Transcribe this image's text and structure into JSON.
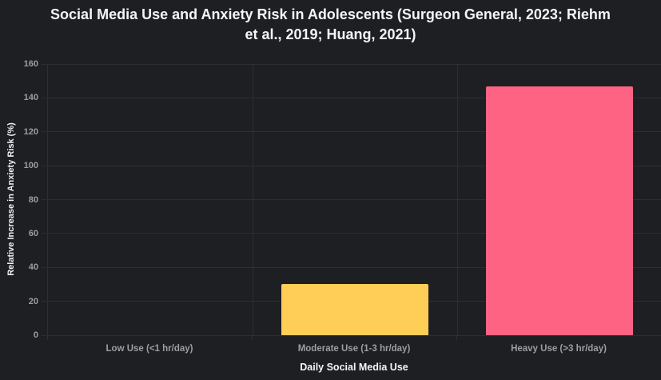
{
  "title_line1": "Social Media Use and Anxiety Risk in Adolescents (Surgeon General, 2023; Riehm",
  "title_line2": "et al., 2019; Huang, 2021)",
  "chart_data": {
    "type": "bar",
    "title": "Social Media Use and Anxiety Risk in Adolescents (Surgeon General, 2023; Riehm et al., 2019; Huang, 2021)",
    "categories": [
      "Low Use (<1 hr/day)",
      "Moderate Use (1-3 hr/day)",
      "Heavy Use (>3 hr/day)"
    ],
    "values": [
      0,
      30,
      147
    ],
    "bar_colors": [
      "#36a2eb",
      "#ffce56",
      "#ff6384"
    ],
    "xlabel": "Daily Social Media Use",
    "ylabel": "Relative Increase in Anxiety Risk (%)",
    "ylim": [
      0,
      160
    ],
    "yticks": [
      0,
      20,
      40,
      60,
      80,
      100,
      120,
      140,
      160
    ],
    "grid": true,
    "legend": false
  },
  "colors": {
    "background": "#1e1f22",
    "gridline": "#2d2f33",
    "tick_text": "#9b9ea3",
    "title_text": "#f4f5f6",
    "bar_moderate": "#ffce56",
    "bar_heavy": "#ff6384"
  }
}
